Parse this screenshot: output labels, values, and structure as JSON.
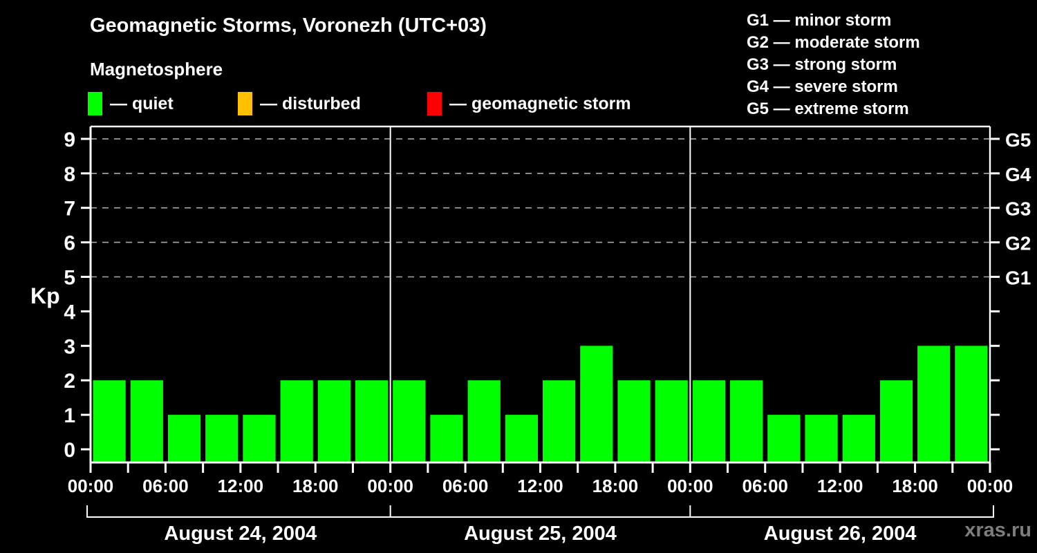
{
  "page": {
    "watermark": "xras.ru"
  },
  "header": {
    "title": "Geomagnetic Storms, Voronezh (UTC+03)",
    "subtitle": "Magnetosphere"
  },
  "legend": {
    "items": [
      {
        "status": "quiet",
        "label": "— quiet",
        "color": "#00ff00"
      },
      {
        "status": "disturbed",
        "label": "— disturbed",
        "color": "#ffc000"
      },
      {
        "status": "storm",
        "label": "— geomagnetic storm",
        "color": "#ff0000"
      }
    ]
  },
  "g_legend": {
    "items": [
      "G1 — minor storm",
      "G2 — moderate storm",
      "G3 — strong storm",
      "G4 — severe storm",
      "G5 — extreme storm"
    ]
  },
  "chart_data": {
    "type": "bar",
    "title": "Geomagnetic Storms, Voronezh (UTC+03)",
    "subtitle": "Magnetosphere",
    "ylabel": "Kp",
    "ylim": [
      0,
      9
    ],
    "y_ticks": [
      0,
      1,
      2,
      3,
      4,
      5,
      6,
      7,
      8,
      9
    ],
    "grid_levels": [
      5,
      6,
      7,
      8,
      9
    ],
    "right_axis_labels": [
      {
        "label": "G1",
        "kp": 5
      },
      {
        "label": "G2",
        "kp": 6
      },
      {
        "label": "G3",
        "kp": 7
      },
      {
        "label": "G4",
        "kp": 8
      },
      {
        "label": "G5",
        "kp": 9
      }
    ],
    "x_tick_labels": [
      "00:00",
      "06:00",
      "12:00",
      "18:00",
      "00:00",
      "06:00",
      "12:00",
      "18:00",
      "00:00",
      "06:00",
      "12:00",
      "18:00",
      "00:00"
    ],
    "bar_interval_hours": 3,
    "bars_per_day": 8,
    "bar_status": "quiet",
    "bar_color": "#00ff00",
    "days": [
      {
        "date": "August 24, 2004",
        "values": [
          2,
          2,
          1,
          1,
          1,
          2,
          2,
          2
        ]
      },
      {
        "date": "August 25, 2004",
        "values": [
          2,
          1,
          2,
          1,
          2,
          3,
          2,
          2
        ]
      },
      {
        "date": "August 26, 2004",
        "values": [
          2,
          2,
          1,
          1,
          1,
          2,
          3,
          3
        ]
      }
    ]
  },
  "colors": {
    "background": "#000000",
    "text": "#ffffff",
    "axis": "#ffffff",
    "grid": "#aaaaaa",
    "bar_quiet": "#00ff00",
    "legend_disturbed": "#ffc000",
    "legend_storm": "#ff0000",
    "watermark": "#7d7d7d"
  }
}
